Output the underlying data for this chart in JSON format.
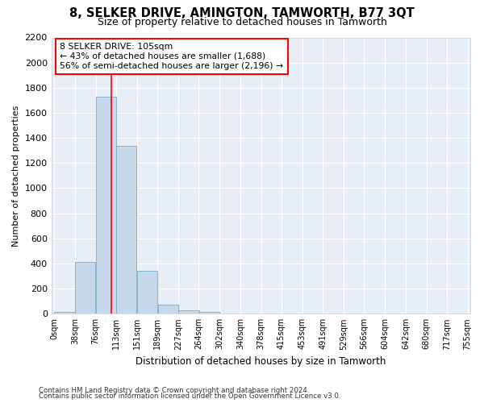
{
  "title": "8, SELKER DRIVE, AMINGTON, TAMWORTH, B77 3QT",
  "subtitle": "Size of property relative to detached houses in Tamworth",
  "xlabel": "Distribution of detached houses by size in Tamworth",
  "ylabel": "Number of detached properties",
  "bar_color": "#c8d8eb",
  "bar_edge_color": "#7aaac8",
  "background_color": "#e8eef5",
  "grid_color": "#ffffff",
  "red_line_x": 105,
  "annotation_text": "8 SELKER DRIVE: 105sqm\n← 43% of detached houses are smaller (1,688)\n56% of semi-detached houses are larger (2,196) →",
  "bin_edges": [
    0,
    38,
    76,
    113,
    151,
    189,
    227,
    264,
    302,
    340,
    378,
    415,
    453,
    491,
    529,
    566,
    604,
    642,
    680,
    717,
    755
  ],
  "bin_values": [
    15,
    410,
    1730,
    1340,
    340,
    75,
    30,
    18,
    0,
    0,
    0,
    0,
    0,
    0,
    0,
    0,
    0,
    0,
    0,
    0
  ],
  "ylim": [
    0,
    2200
  ],
  "yticks": [
    0,
    200,
    400,
    600,
    800,
    1000,
    1200,
    1400,
    1600,
    1800,
    2000,
    2200
  ],
  "footnote1": "Contains HM Land Registry data © Crown copyright and database right 2024.",
  "footnote2": "Contains public sector information licensed under the Open Government Licence v3.0."
}
